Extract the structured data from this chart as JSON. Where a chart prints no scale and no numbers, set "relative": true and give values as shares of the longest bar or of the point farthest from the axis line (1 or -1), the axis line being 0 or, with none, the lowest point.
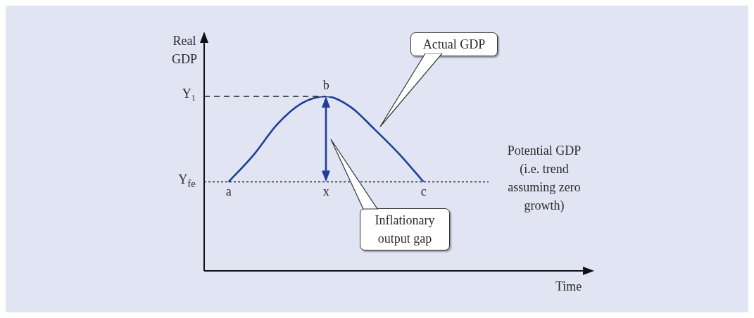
{
  "chart_data": {
    "type": "line",
    "relative": true,
    "xlabel": "Time",
    "ylabel": "Real GDP",
    "categories": [
      null,
      "a",
      null,
      null,
      null,
      "x",
      null,
      null,
      null,
      "c",
      null,
      null,
      null,
      null,
      null,
      null,
      null
    ],
    "series": [
      {
        "color": "#1f3d99",
        "values": [
          null,
          0.51,
          0.66,
          0.84,
          0.96,
          1,
          0.94,
          0.81,
          0.67,
          0.51,
          null,
          null,
          null,
          null,
          null,
          null,
          null
        ]
      }
    ],
    "ref_lines": [
      {
        "axis": "y",
        "value": 1,
        "label": "Y₁",
        "line_style": "dashed"
      },
      {
        "axis": "y",
        "value": 0.51,
        "label": "Y$_{fe}$",
        "line_style": "dotted"
      }
    ],
    "annotations": [
      {
        "text": "b",
        "x": "x",
        "y": 1
      },
      "Actual GDP",
      "Inflationary output gap",
      "Potential GDP (i.e. trend assuming zero growth)"
    ],
    "legend": false,
    "grid": false,
    "marker": "none",
    "line_style": "solid"
  }
}
